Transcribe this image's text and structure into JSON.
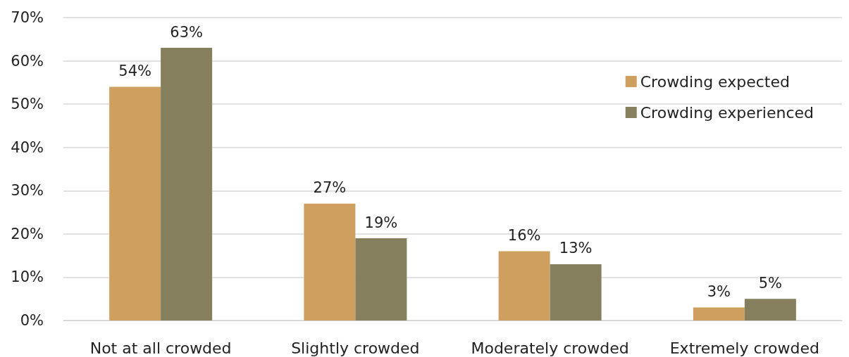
{
  "chart_data": {
    "type": "bar",
    "categories": [
      "Not at all crowded",
      "Slightly crowded",
      "Moderately crowded",
      "Extremely crowded"
    ],
    "series": [
      {
        "name": "Crowding expected",
        "color": "#cf9f5f",
        "values": [
          54,
          27,
          16,
          3
        ],
        "value_labels": [
          "54%",
          "27%",
          "16%",
          "3%"
        ]
      },
      {
        "name": "Crowding experienced",
        "color": "#857f5d",
        "values": [
          63,
          19,
          13,
          5
        ],
        "value_labels": [
          "63%",
          "19%",
          "13%",
          "5%"
        ]
      }
    ],
    "ylim": [
      0,
      70
    ],
    "yticks": [
      {
        "value": 0,
        "label": "0%"
      },
      {
        "value": 10,
        "label": "10%"
      },
      {
        "value": 20,
        "label": "20%"
      },
      {
        "value": 30,
        "label": "30%"
      },
      {
        "value": 40,
        "label": "40%"
      },
      {
        "value": 50,
        "label": "50%"
      },
      {
        "value": 60,
        "label": "60%"
      },
      {
        "value": 70,
        "label": "70%"
      }
    ],
    "grid": "y",
    "legend": "top right"
  }
}
